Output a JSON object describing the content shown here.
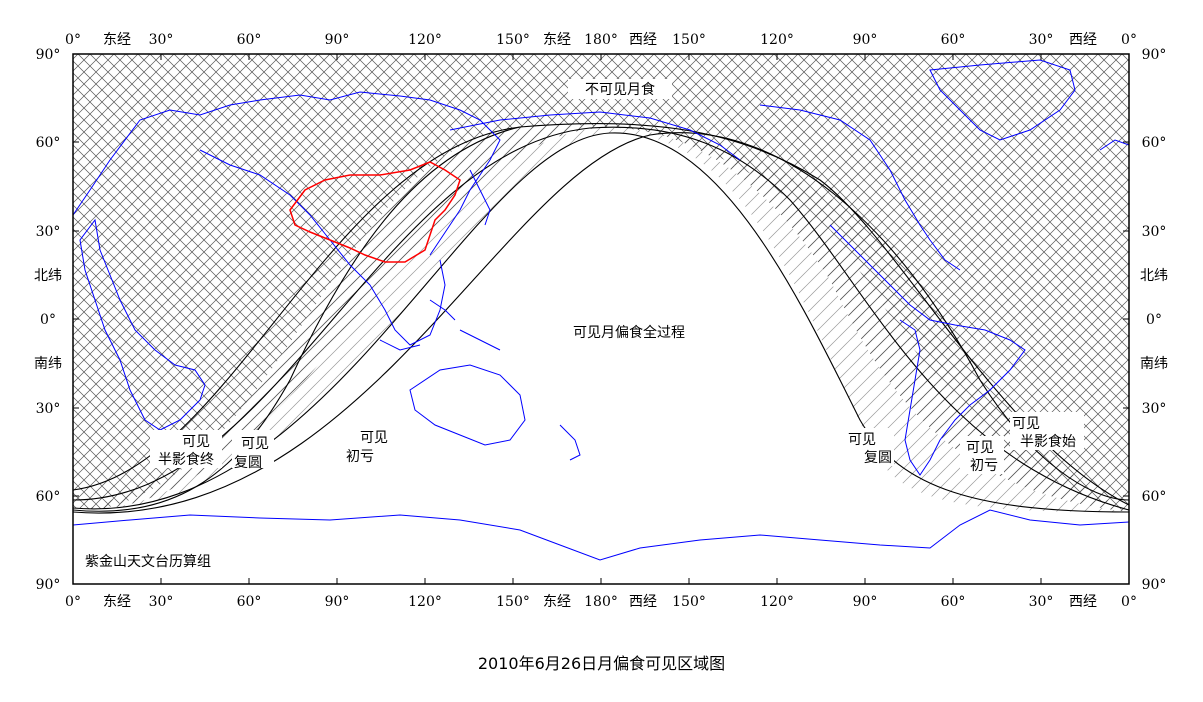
{
  "caption": "2010年6月26日月偏食可见区域图",
  "credit": "紫金山天文台历算组",
  "top_axis": {
    "ticks": [
      "0°",
      "30°",
      "60°",
      "90°",
      "120°",
      "150°",
      "180°",
      "150°",
      "120°",
      "90°",
      "60°",
      "30°",
      "0°"
    ],
    "east_label": "东经",
    "west_label": "西经"
  },
  "bottom_axis": {
    "ticks": [
      "0°",
      "30°",
      "60°",
      "90°",
      "120°",
      "150°",
      "180°",
      "150°",
      "120°",
      "90°",
      "60°",
      "30°",
      "0°"
    ],
    "east_label": "东经",
    "west_label": "西经"
  },
  "left_axis": {
    "ticks": [
      "90°",
      "60°",
      "30°",
      "0°",
      "30°",
      "60°",
      "90°"
    ],
    "north_label": "北纬",
    "south_label": "南纬"
  },
  "right_axis": {
    "ticks": [
      "90°",
      "60°",
      "30°",
      "0°",
      "30°",
      "60°",
      "90°"
    ],
    "north_label": "北纬",
    "south_label": "南纬"
  },
  "regions": {
    "not_visible": "不可见月食",
    "fully_visible": "可见月偏食全过程"
  },
  "curve_labels": {
    "penumbra_end_line1": "可见",
    "penumbra_end_line2": "半影食终",
    "reappear_west_line1": "可见",
    "reappear_west_line2": "复圆",
    "first_contact_west_line1": "可见",
    "first_contact_west_line2": "初亏",
    "reappear_east_line1": "可见",
    "reappear_east_line2": "复圆",
    "first_contact_east_line1": "可见",
    "first_contact_east_line2": "初亏",
    "penumbra_start_line1": "可见",
    "penumbra_start_line2": "半影食始"
  },
  "colors": {
    "coastline": "#0000ff",
    "china_border": "#ff0000",
    "curves": "#000000",
    "hatch": "#555555",
    "hatch_light": "#999999",
    "frame": "#000000"
  }
}
